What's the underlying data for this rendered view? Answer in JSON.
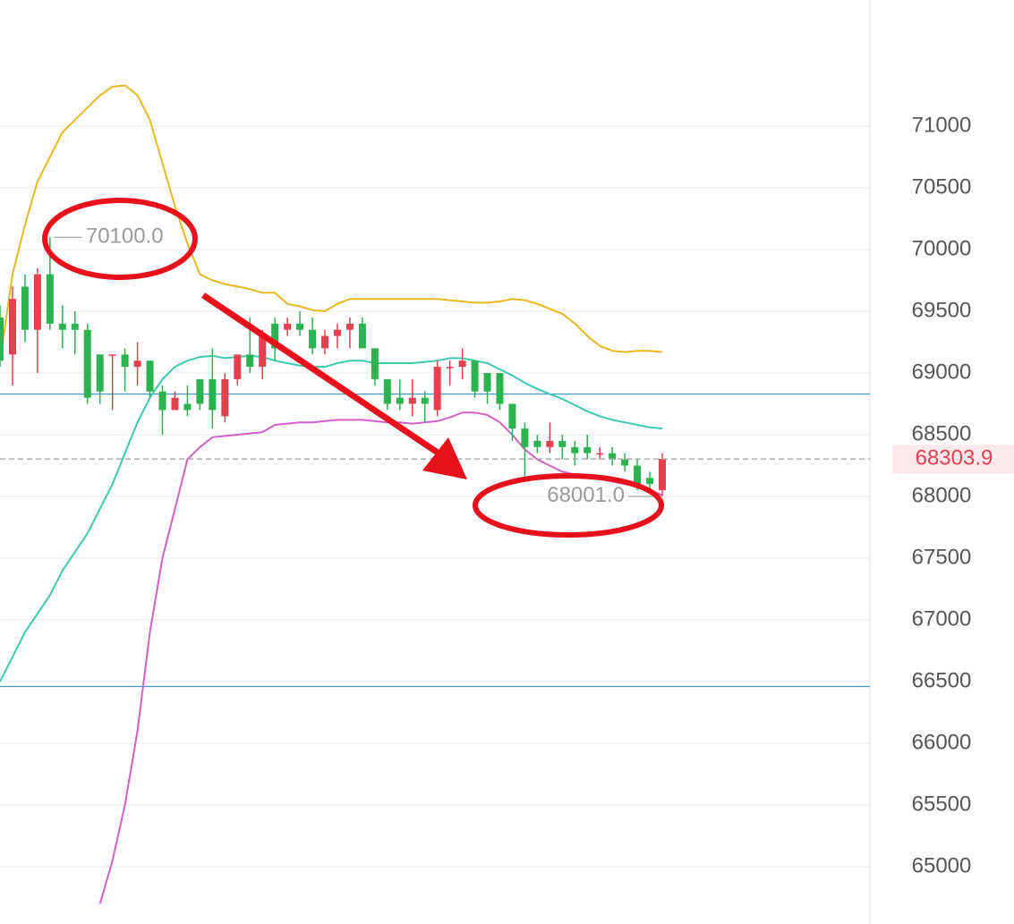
{
  "chart_data": {
    "type": "candlestick",
    "ylim": [
      64536,
      72022
    ],
    "yticks": [
      65000,
      65500,
      66000,
      66500,
      67000,
      67500,
      68000,
      68500,
      69000,
      69500,
      70000,
      70500,
      71000
    ],
    "grid": true,
    "up_color": "#e5404f",
    "down_color": "#2ab34f",
    "open": [
      69450,
      69150,
      69700,
      69350,
      69800,
      69400,
      69400,
      69350,
      69150,
      69150,
      69150,
      69050,
      69100,
      68850,
      68700,
      68750,
      68950,
      68950,
      68650,
      68950,
      69150,
      69050,
      69400,
      69350,
      69400,
      69350,
      69200,
      69300,
      69350,
      69400,
      69200,
      68950,
      68800,
      68750,
      68800,
      68700,
      69050,
      69050,
      69100,
      69000,
      69000,
      68750,
      68550,
      68450,
      68400,
      68450,
      68400,
      68400,
      68350,
      68350,
      68300,
      68250,
      68150,
      68050
    ],
    "high": [
      69550,
      69700,
      69800,
      69850,
      70100,
      69550,
      69500,
      69400,
      69150,
      69150,
      69200,
      69250,
      69100,
      68900,
      68850,
      68900,
      68950,
      69200,
      69000,
      69150,
      69450,
      69350,
      69450,
      69450,
      69500,
      69450,
      69350,
      69400,
      69450,
      69450,
      69200,
      68950,
      68950,
      68950,
      68850,
      69100,
      69100,
      69200,
      69100,
      69000,
      69000,
      68750,
      68600,
      68500,
      68600,
      68500,
      68450,
      68500,
      68400,
      68400,
      68350,
      68300,
      68200,
      68350
    ],
    "low": [
      69050,
      68900,
      69250,
      69000,
      69350,
      69200,
      69150,
      68750,
      68750,
      68700,
      68850,
      68900,
      68800,
      68500,
      68700,
      68650,
      68700,
      68550,
      68600,
      68900,
      69000,
      68950,
      69100,
      69300,
      69300,
      69150,
      69150,
      69200,
      69200,
      69200,
      68900,
      68700,
      68700,
      68650,
      68600,
      68650,
      68900,
      68950,
      68800,
      68750,
      68700,
      68450,
      68150,
      68350,
      68350,
      68300,
      68250,
      68300,
      68300,
      68250,
      68200,
      68050,
      68050,
      68001
    ],
    "close": [
      69100,
      69600,
      69350,
      69800,
      69400,
      69350,
      69350,
      68800,
      68850,
      69150,
      69050,
      69100,
      68850,
      68700,
      68800,
      68700,
      68750,
      68700,
      68950,
      69150,
      69050,
      69300,
      69200,
      69400,
      69350,
      69200,
      69300,
      69350,
      69400,
      69200,
      68950,
      68750,
      68750,
      68800,
      68750,
      69050,
      69050,
      69100,
      68850,
      68850,
      68750,
      68550,
      68400,
      68400,
      68450,
      68400,
      68350,
      68350,
      68350,
      68300,
      68250,
      68100,
      68100,
      68303.9
    ],
    "bands": {
      "upper": {
        "color": "#e8b820",
        "values": [
          69100,
          69800,
          70200,
          70550,
          70750,
          70950,
          71050,
          71150,
          71250,
          71320,
          71330,
          71250,
          71050,
          70700,
          70350,
          70050,
          69800,
          69750,
          69720,
          69700,
          69680,
          69650,
          69650,
          69560,
          69540,
          69510,
          69500,
          69560,
          69600,
          69600,
          69600,
          69600,
          69600,
          69600,
          69600,
          69600,
          69590,
          69580,
          69570,
          69570,
          69580,
          69600,
          69590,
          69560,
          69520,
          69480,
          69400,
          69300,
          69220,
          69180,
          69170,
          69180,
          69180,
          69170
        ]
      },
      "mid": {
        "color": "#3cc9b0",
        "values": [
          66500,
          66700,
          66900,
          67050,
          67200,
          67400,
          67550,
          67700,
          67900,
          68100,
          68350,
          68600,
          68800,
          68950,
          69050,
          69100,
          69130,
          69140,
          69120,
          69130,
          69140,
          69130,
          69100,
          69080,
          69060,
          69050,
          69050,
          69080,
          69100,
          69100,
          69080,
          69080,
          69080,
          69080,
          69090,
          69100,
          69120,
          69120,
          69100,
          69080,
          69030,
          68980,
          68920,
          68870,
          68830,
          68790,
          68740,
          68690,
          68650,
          68620,
          68600,
          68580,
          68560,
          68550
        ]
      },
      "lower": {
        "color": "#d35fc7",
        "values": [
          null,
          null,
          null,
          null,
          null,
          null,
          null,
          null,
          64700,
          65050,
          65500,
          66100,
          66900,
          67500,
          67900,
          68300,
          68400,
          68480,
          68490,
          68500,
          68510,
          68520,
          68580,
          68590,
          68600,
          68600,
          68610,
          68620,
          68620,
          68620,
          68610,
          68600,
          68600,
          68590,
          68600,
          68610,
          68640,
          68680,
          68680,
          68660,
          68600,
          68500,
          68380,
          68300,
          68250,
          68200,
          68180,
          68160,
          68140,
          68120,
          68100,
          68080,
          68050,
          68010
        ]
      }
    },
    "hlines": [
      68830,
      66460
    ],
    "hline_color": "#3a9cc8",
    "annotations": [
      {
        "value": 70100,
        "label": "70100.0"
      },
      {
        "value": 68001,
        "label": "68001.0"
      }
    ]
  }
}
